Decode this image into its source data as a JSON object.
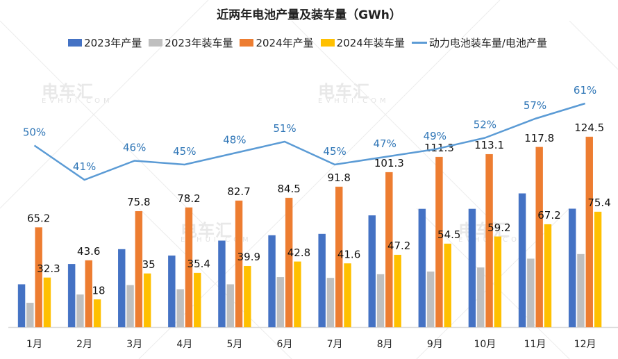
{
  "watermark": {
    "brand_cn": "电车汇",
    "brand_en": "EVHUI.COM"
  },
  "chart_data": {
    "type": "bar",
    "title": "近两年电池产量及装车量（GWh）",
    "xlabel": "",
    "ylabel": "",
    "ylim": [
      0,
      140
    ],
    "secondary_ylim": [
      0,
      100
    ],
    "grid": false,
    "legend_position": "top",
    "categories": [
      "1月",
      "2月",
      "3月",
      "4月",
      "5月",
      "6月",
      "7月",
      "8月",
      "9月",
      "10月",
      "11月",
      "12月"
    ],
    "series": [
      {
        "name": "2023年产量",
        "type": "bar",
        "color": "#4472C4",
        "labeled": false,
        "values": [
          27.9,
          41.2,
          50.9,
          46.7,
          56.5,
          60.0,
          60.9,
          73.0,
          77.3,
          77.3,
          87.4,
          77.4
        ]
      },
      {
        "name": "2023年装车量",
        "type": "bar",
        "color": "#BFBFBF",
        "labeled": false,
        "values": [
          15.8,
          21.2,
          27.4,
          24.7,
          27.9,
          32.6,
          32.1,
          34.5,
          36.2,
          38.9,
          44.7,
          47.7
        ]
      },
      {
        "name": "2024年产量",
        "type": "bar",
        "color": "#ED7D31",
        "labeled": true,
        "values": [
          65.2,
          43.6,
          75.8,
          78.2,
          82.7,
          84.5,
          91.8,
          101.3,
          111.3,
          113.1,
          117.8,
          124.5
        ]
      },
      {
        "name": "2024年装车量",
        "type": "bar",
        "color": "#FFC000",
        "labeled": true,
        "values": [
          32.3,
          18,
          35,
          35.4,
          39.9,
          42.8,
          41.6,
          47.2,
          54.5,
          59.2,
          67.2,
          75.4
        ]
      },
      {
        "name": "动力电池装车量/电池产量",
        "type": "line",
        "color": "#5B9BD5",
        "label_color": "#2E75B6",
        "labeled": true,
        "unit": "%",
        "values": [
          50,
          41,
          46,
          45,
          48,
          51,
          45,
          47,
          49,
          52,
          57,
          61
        ]
      }
    ]
  }
}
